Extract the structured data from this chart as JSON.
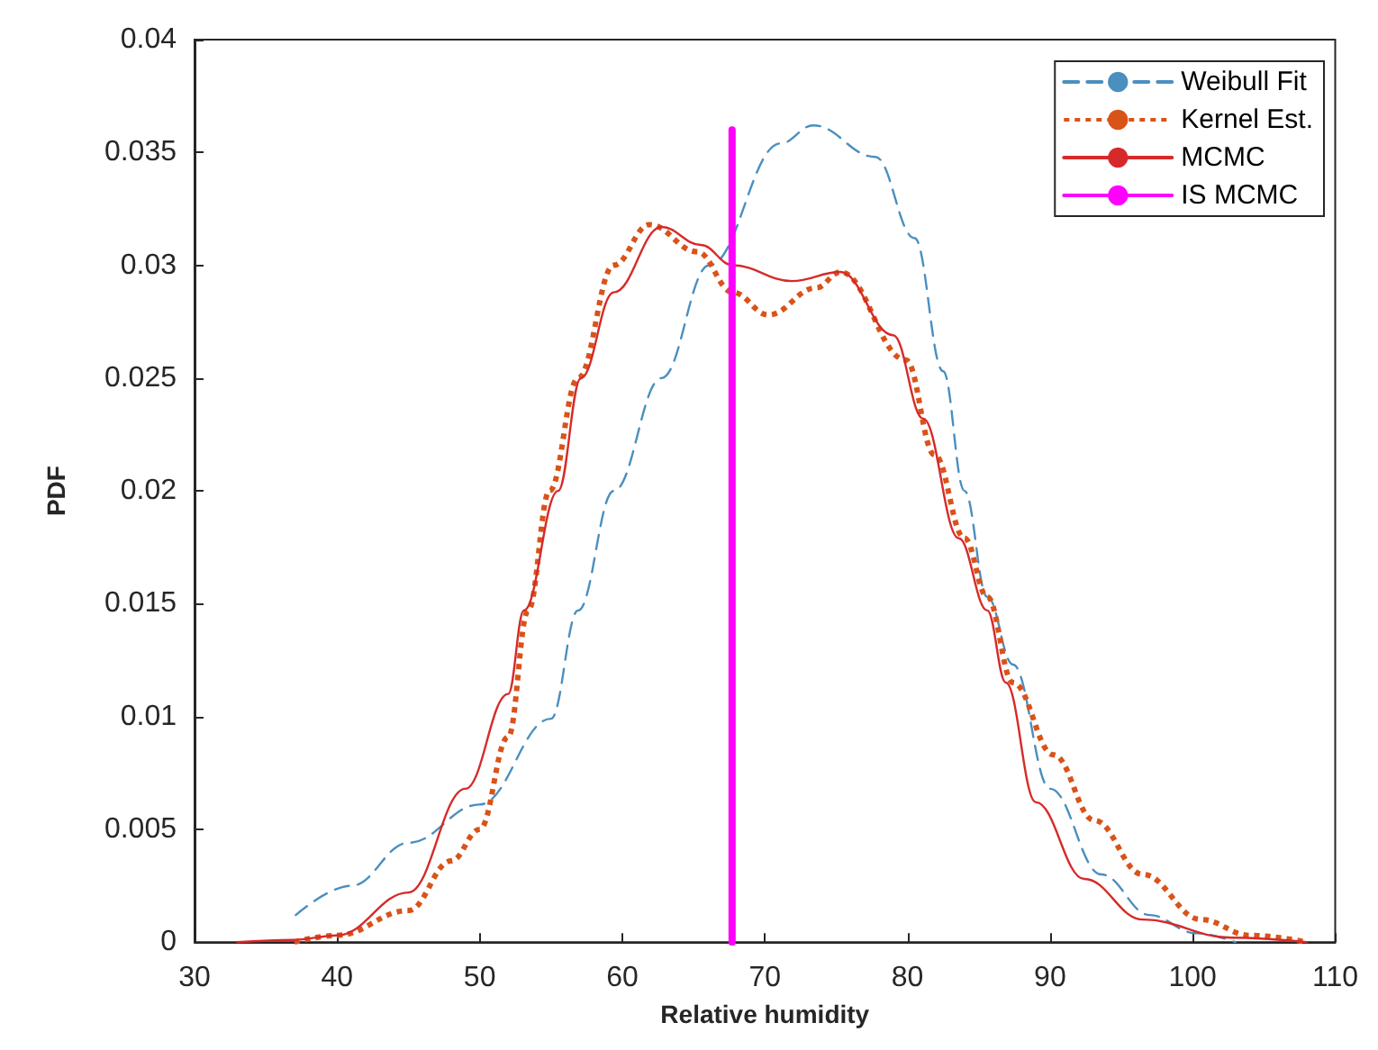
{
  "chart_data": {
    "type": "line",
    "xlabel": "Relative humidity",
    "ylabel": "PDF",
    "xlim": [
      30,
      110
    ],
    "xticks": [
      30,
      40,
      50,
      60,
      70,
      80,
      90,
      100,
      110
    ],
    "ylim": [
      0,
      0.04
    ],
    "yticks": [
      0,
      0.005,
      0.01,
      0.015,
      0.02,
      0.025,
      0.03,
      0.035,
      0.04
    ],
    "grid": false,
    "legend": "top right",
    "marker": "none",
    "series": [
      {
        "name": "Weibull Fit",
        "color": "#4a8fbf",
        "line_style": "dashed",
        "x": [
          37.1,
          41,
          45,
          50,
          55,
          56.9,
          59.4,
          62.75,
          66.1,
          71.1,
          73.4,
          77.75,
          80.5,
          82.5,
          84,
          85.6,
          87.4,
          90,
          93.6,
          97,
          100.2,
          103
        ],
        "values": [
          0.0012,
          0.0025,
          0.0044,
          0.0061,
          0.0099,
          0.0147,
          0.02,
          0.025,
          0.03,
          0.0354,
          0.0362,
          0.0348,
          0.0312,
          0.0253,
          0.02,
          0.0153,
          0.0123,
          0.0068,
          0.003,
          0.0012,
          0.0004,
          0
        ]
      },
      {
        "name": "Kernel Est.",
        "color": "#d95319",
        "line_style": "dotted",
        "x": [
          37,
          40,
          45,
          48,
          50,
          52,
          53.4,
          54.9,
          56.9,
          59.4,
          61.9,
          65.25,
          67.75,
          70.25,
          73.6,
          75.3,
          79.9,
          81.9,
          84,
          85.6,
          87.4,
          90.25,
          93.1,
          96.5,
          100.6,
          104,
          108
        ],
        "values": [
          0,
          0.0003,
          0.0014,
          0.0036,
          0.005,
          0.0091,
          0.0147,
          0.02,
          0.025,
          0.03,
          0.0318,
          0.0306,
          0.0288,
          0.0278,
          0.029,
          0.0297,
          0.0258,
          0.0216,
          0.0179,
          0.0153,
          0.0115,
          0.0083,
          0.0054,
          0.003,
          0.001,
          0.0003,
          0
        ]
      },
      {
        "name": "MCMC",
        "color": "#d62a2a",
        "line_style": "solid",
        "x": [
          33,
          37,
          40,
          45,
          49,
          52,
          53.1,
          55.5,
          57.1,
          59.4,
          62.75,
          65.5,
          67.75,
          71.9,
          75.3,
          79,
          81.1,
          83.6,
          85.6,
          86.9,
          89,
          92.4,
          96.5,
          102.7,
          108
        ],
        "values": [
          0,
          0.0001,
          0.0003,
          0.0022,
          0.0068,
          0.011,
          0.0147,
          0.02,
          0.025,
          0.0288,
          0.0317,
          0.0309,
          0.03,
          0.0293,
          0.0297,
          0.0269,
          0.0232,
          0.0179,
          0.0147,
          0.0115,
          0.0062,
          0.0028,
          0.001,
          0.0002,
          0
        ]
      },
      {
        "name": "IS MCMC",
        "color": "#ff00ff",
        "line_style": "solid",
        "x": [
          67.7,
          67.7
        ],
        "values": [
          0,
          0.036
        ]
      }
    ]
  }
}
